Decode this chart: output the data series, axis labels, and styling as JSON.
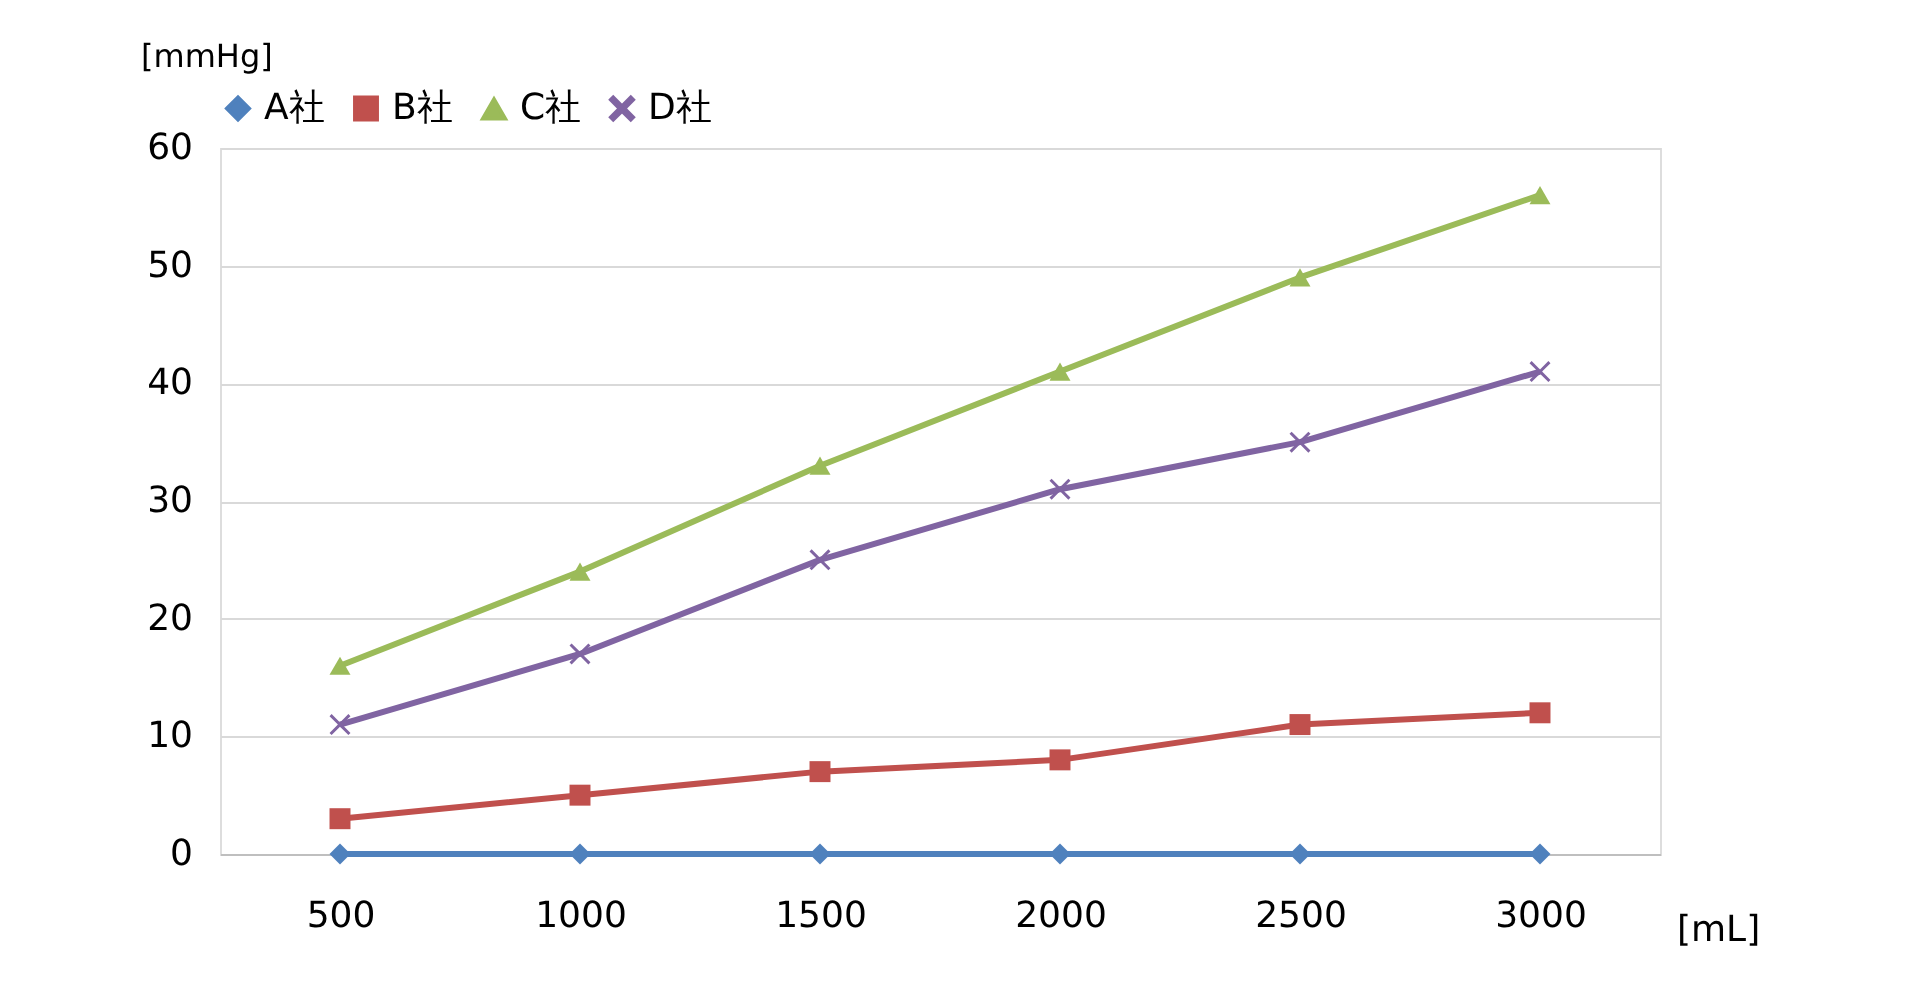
{
  "chart_data": {
    "type": "line",
    "xlabel": "[mL]",
    "ylabel": "[mmHg]",
    "categories": [
      "500",
      "1000",
      "1500",
      "2000",
      "2500",
      "3000"
    ],
    "series": [
      {
        "name": "A社",
        "color": "#4f81bd",
        "marker": "diamond",
        "values": [
          0,
          0,
          0,
          0,
          0,
          0
        ]
      },
      {
        "name": "B社",
        "color": "#c0504d",
        "marker": "square",
        "values": [
          3,
          5,
          7,
          8,
          11,
          12
        ]
      },
      {
        "name": "C社",
        "color": "#9bbb59",
        "marker": "triangle",
        "values": [
          16,
          24,
          33,
          41,
          49,
          56
        ]
      },
      {
        "name": "D社",
        "color": "#8064a2",
        "marker": "cross",
        "values": [
          11,
          17,
          25,
          31,
          35,
          41
        ]
      }
    ],
    "ylim": [
      0,
      60
    ],
    "yticks": [
      0,
      10,
      20,
      30,
      40,
      50,
      60
    ],
    "grid": "y",
    "legend": "top",
    "line_style": "solid"
  }
}
